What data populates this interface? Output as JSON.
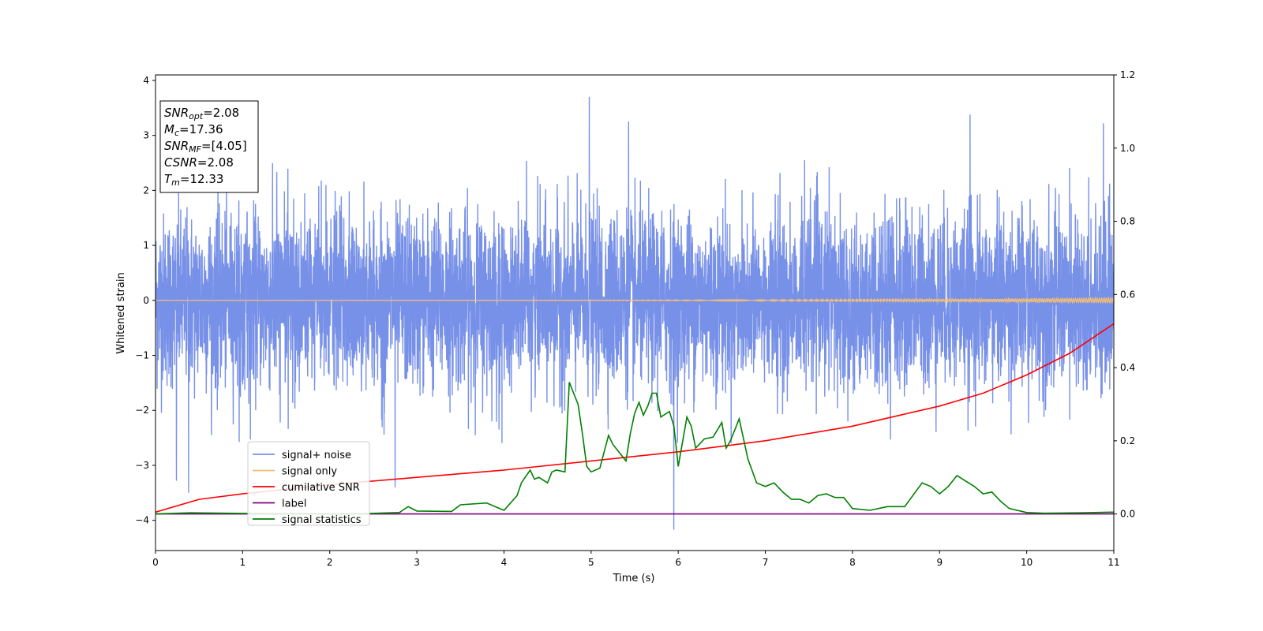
{
  "chart_data": {
    "type": "line",
    "xlabel": "Time (s)",
    "ylabel": "Whitened strain",
    "xlim": [
      0,
      11
    ],
    "ylim": [
      -4.55,
      4.1
    ],
    "y2lim": [
      -0.1,
      1.2
    ],
    "x_ticks": [
      "0",
      "1",
      "2",
      "3",
      "4",
      "5",
      "6",
      "7",
      "8",
      "9",
      "10",
      "11"
    ],
    "y_ticks": [
      "−4",
      "−3",
      "−2",
      "−1",
      "0",
      "1",
      "2",
      "3",
      "4"
    ],
    "y2_ticks": [
      "0.0",
      "0.2",
      "0.4",
      "0.6",
      "0.8",
      "1.0",
      "1.2"
    ],
    "grid": false,
    "legend_position": "lower-left",
    "annotation": {
      "lines": [
        {
          "base": "SNR",
          "sub": "opt",
          "value": "=2.08"
        },
        {
          "base": "M",
          "sub": "c",
          "value": "=17.36"
        },
        {
          "base": "SNR",
          "sub": "MF",
          "value": "=[4.05]"
        },
        {
          "base": "CSNR",
          "sub": "",
          "value": "=2.08"
        },
        {
          "base": "T",
          "sub": "m",
          "value": "=12.33"
        }
      ]
    },
    "series": [
      {
        "name": "signal+ noise",
        "color": "#7891e8",
        "axis": "left",
        "description": "dense noisy whitened strain, roughly within ±2.5 with spikes up to about 3.7 and down to about -4.2",
        "peak_points": [
          [
            0.38,
            -3.5
          ],
          [
            0.24,
            -3.28
          ],
          [
            2.75,
            -3.4
          ],
          [
            4.98,
            3.7
          ],
          [
            5.43,
            3.25
          ],
          [
            5.95,
            -4.17
          ],
          [
            9.35,
            3.38
          ],
          [
            10.88,
            3.22
          ],
          [
            7.45,
            2.55
          ]
        ]
      },
      {
        "name": "signal only",
        "color": "#f5be73",
        "axis": "left",
        "x": [
          0,
          1,
          2,
          3,
          4,
          5,
          6,
          7,
          8,
          9,
          10,
          11
        ],
        "y": [
          0,
          0,
          0,
          0,
          0,
          0,
          0,
          0,
          0,
          0,
          0,
          0
        ]
      },
      {
        "name": "cumilative SNR",
        "color": "#ff0000",
        "axis": "right",
        "x": [
          0,
          0.5,
          1,
          2,
          3,
          4,
          5,
          6,
          7,
          8,
          9,
          9.5,
          10,
          10.5,
          11
        ],
        "y": [
          0.005,
          0.04,
          0.055,
          0.08,
          0.1,
          0.12,
          0.145,
          0.17,
          0.2,
          0.24,
          0.295,
          0.33,
          0.38,
          0.44,
          0.52
        ]
      },
      {
        "name": "label",
        "color": "#800080",
        "axis": "right",
        "x": [
          0,
          11
        ],
        "y": [
          0,
          0
        ]
      },
      {
        "name": "signal statistics",
        "color": "#008000",
        "axis": "right",
        "x": [
          0,
          0.4,
          0.8,
          1.2,
          1.6,
          2.0,
          2.4,
          2.8,
          2.9,
          3.0,
          3.4,
          3.5,
          3.8,
          4.0,
          4.15,
          4.2,
          4.3,
          4.35,
          4.4,
          4.5,
          4.55,
          4.6,
          4.7,
          4.75,
          4.8,
          4.85,
          4.9,
          4.95,
          5.0,
          5.1,
          5.2,
          5.25,
          5.3,
          5.4,
          5.45,
          5.5,
          5.55,
          5.6,
          5.65,
          5.7,
          5.75,
          5.8,
          5.9,
          5.95,
          6.0,
          6.1,
          6.15,
          6.2,
          6.3,
          6.4,
          6.5,
          6.55,
          6.6,
          6.7,
          6.8,
          6.9,
          7.0,
          7.1,
          7.2,
          7.3,
          7.4,
          7.5,
          7.6,
          7.7,
          7.8,
          7.9,
          8.0,
          8.2,
          8.4,
          8.5,
          8.6,
          8.8,
          8.9,
          9.0,
          9.1,
          9.2,
          9.3,
          9.4,
          9.5,
          9.6,
          9.7,
          9.8,
          10.0,
          10.2,
          10.6,
          11.0
        ],
        "y": [
          0,
          0.003,
          0.002,
          0.001,
          0.001,
          0.0,
          0.001,
          0.004,
          0.02,
          0.008,
          0.007,
          0.025,
          0.03,
          0.01,
          0.05,
          0.085,
          0.12,
          0.095,
          0.1,
          0.085,
          0.115,
          0.12,
          0.115,
          0.36,
          0.33,
          0.3,
          0.22,
          0.13,
          0.115,
          0.125,
          0.215,
          0.19,
          0.175,
          0.145,
          0.22,
          0.275,
          0.305,
          0.27,
          0.295,
          0.33,
          0.33,
          0.265,
          0.28,
          0.24,
          0.13,
          0.265,
          0.24,
          0.18,
          0.205,
          0.21,
          0.25,
          0.18,
          0.2,
          0.26,
          0.15,
          0.085,
          0.075,
          0.085,
          0.06,
          0.04,
          0.04,
          0.03,
          0.05,
          0.055,
          0.045,
          0.045,
          0.015,
          0.01,
          0.02,
          0.02,
          0.02,
          0.085,
          0.075,
          0.055,
          0.075,
          0.105,
          0.09,
          0.075,
          0.055,
          0.06,
          0.035,
          0.015,
          0.004,
          0.002,
          0.003,
          0.005
        ]
      }
    ]
  }
}
